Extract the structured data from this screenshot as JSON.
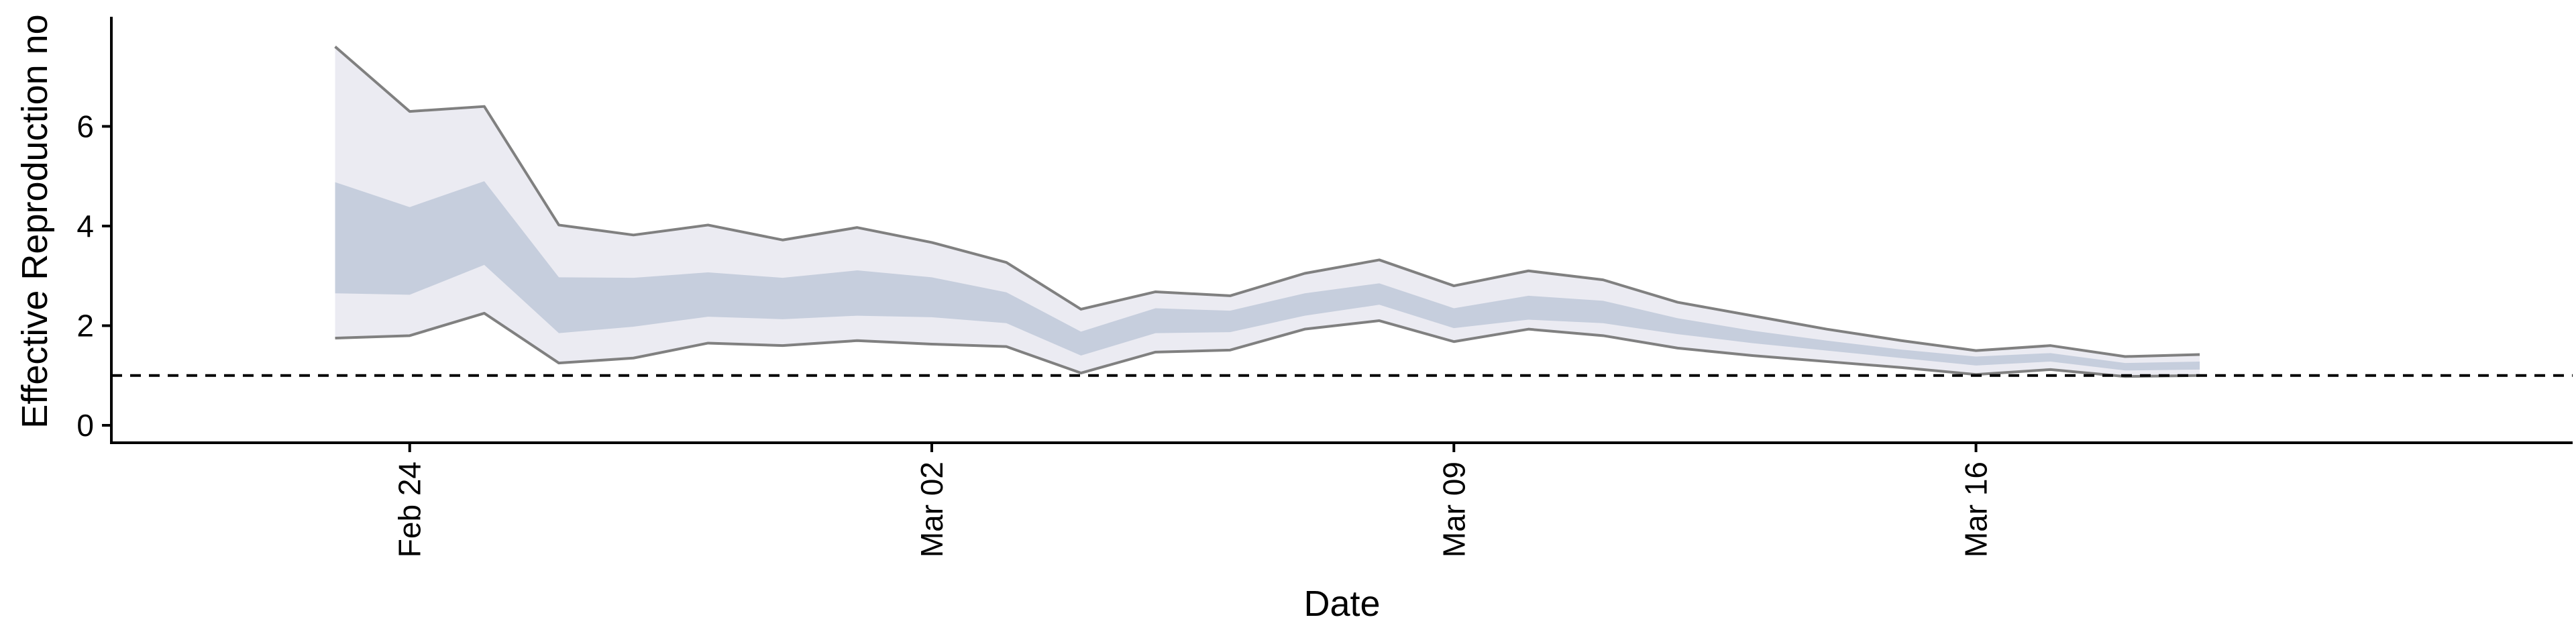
{
  "chart_data": {
    "type": "area",
    "title": "",
    "xlabel": "Date",
    "ylabel": "Effective Reproduction no",
    "xlim": [
      "2020-02-20",
      "2020-03-24"
    ],
    "ylim": [
      -0.35,
      8.2
    ],
    "xticks": [
      {
        "label": "Feb 24",
        "date": "2020-02-24"
      },
      {
        "label": "Mar 02",
        "date": "2020-03-02"
      },
      {
        "label": "Mar 09",
        "date": "2020-03-09"
      },
      {
        "label": "Mar 16",
        "date": "2020-03-16"
      }
    ],
    "yticks": [
      0,
      2,
      4,
      6
    ],
    "reference_line": {
      "y": 1,
      "style": "dashed",
      "color": "#000000"
    },
    "grid": false,
    "legend": "none",
    "colors": {
      "outer_band": "#ebebf2",
      "inner_band": "#c6cedd",
      "outer_edge": "#808080"
    },
    "x": [
      "2020-02-23",
      "2020-02-24",
      "2020-02-25",
      "2020-02-26",
      "2020-02-27",
      "2020-02-28",
      "2020-02-29",
      "2020-03-01",
      "2020-03-02",
      "2020-03-03",
      "2020-03-04",
      "2020-03-05",
      "2020-03-06",
      "2020-03-07",
      "2020-03-08",
      "2020-03-09",
      "2020-03-10",
      "2020-03-11",
      "2020-03-12",
      "2020-03-13",
      "2020-03-14",
      "2020-03-15",
      "2020-03-16",
      "2020-03-17",
      "2020-03-18",
      "2020-03-19"
    ],
    "series": [
      {
        "band": "outer",
        "lower": [
          1.75,
          1.8,
          2.25,
          1.25,
          1.35,
          1.65,
          1.6,
          1.7,
          1.63,
          1.58,
          1.05,
          1.47,
          1.51,
          1.93,
          2.1,
          1.68,
          1.93,
          1.8,
          1.55,
          1.4,
          1.28,
          1.16,
          1.02,
          1.12,
          0.98,
          1.0
        ],
        "upper": [
          7.6,
          6.3,
          6.4,
          4.02,
          3.82,
          4.02,
          3.72,
          3.97,
          3.67,
          3.27,
          2.33,
          2.68,
          2.6,
          3.05,
          3.32,
          2.8,
          3.1,
          2.92,
          2.47,
          2.2,
          1.93,
          1.7,
          1.5,
          1.6,
          1.38,
          1.42
        ]
      },
      {
        "band": "inner",
        "lower": [
          2.65,
          2.62,
          3.22,
          1.85,
          1.98,
          2.18,
          2.13,
          2.2,
          2.17,
          2.05,
          1.4,
          1.85,
          1.87,
          2.2,
          2.42,
          1.95,
          2.12,
          2.05,
          1.83,
          1.65,
          1.5,
          1.35,
          1.2,
          1.28,
          1.1,
          1.12
        ],
        "upper": [
          4.88,
          4.38,
          4.9,
          2.97,
          2.96,
          3.07,
          2.96,
          3.11,
          2.97,
          2.67,
          1.88,
          2.35,
          2.3,
          2.65,
          2.85,
          2.35,
          2.6,
          2.5,
          2.15,
          1.9,
          1.7,
          1.52,
          1.38,
          1.45,
          1.25,
          1.28
        ]
      }
    ]
  }
}
